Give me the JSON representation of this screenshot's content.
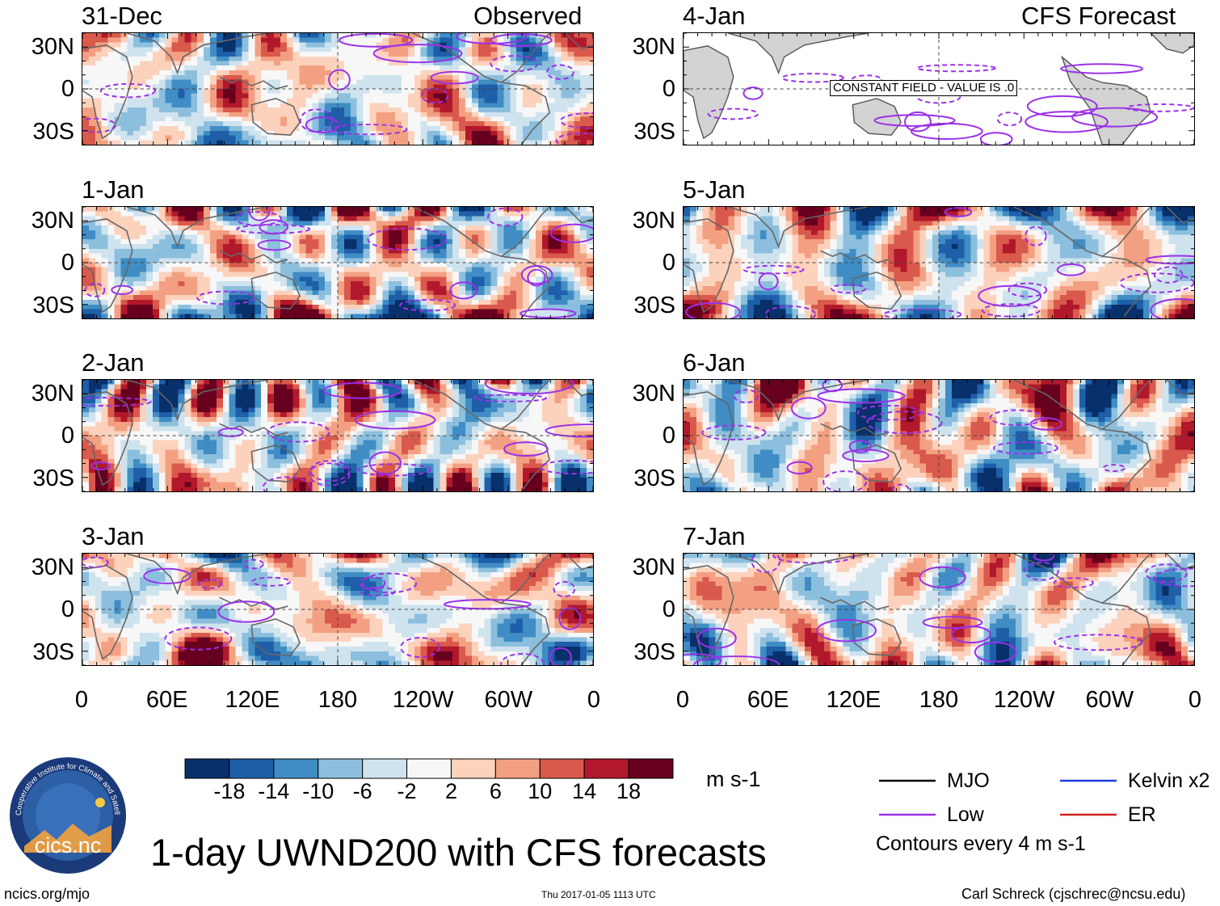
{
  "chart_data": {
    "type": "heatmap",
    "title": "1-day UWND200 with CFS forecasts",
    "units": "m s-1",
    "variable": "UWND200",
    "column_headers": {
      "left": "Observed",
      "right": "CFS Forecast"
    },
    "panels_left": [
      {
        "date": "31-Dec",
        "seed": 11
      },
      {
        "date": "1-Jan",
        "seed": 23
      },
      {
        "date": "2-Jan",
        "seed": 37
      },
      {
        "date": "3-Jan",
        "seed": 41
      }
    ],
    "panels_right": [
      {
        "date": "4-Jan",
        "seed": 0,
        "constant": true,
        "message": "CONSTANT FIELD - VALUE IS .0"
      },
      {
        "date": "5-Jan",
        "seed": 53
      },
      {
        "date": "6-Jan",
        "seed": 67
      },
      {
        "date": "7-Jan",
        "seed": 79
      }
    ],
    "y_axis": {
      "ticks": [
        "30N",
        "0",
        "30S"
      ],
      "lat_values": [
        30,
        0,
        -30
      ],
      "lat_range": [
        -40,
        40
      ]
    },
    "x_axis": {
      "ticks": [
        "0",
        "60E",
        "120E",
        "180",
        "120W",
        "60W",
        "0"
      ],
      "lon_values": [
        0,
        60,
        120,
        180,
        240,
        300,
        360
      ],
      "lon_range": [
        0,
        360
      ]
    },
    "colorbar": {
      "labels": [
        "-18",
        "-14",
        "-10",
        "-6",
        "-2",
        "2",
        "6",
        "10",
        "14",
        "18"
      ],
      "colors": [
        "#08306b",
        "#1f5ea8",
        "#3f8dc4",
        "#8cbfdd",
        "#cfe3ef",
        "#f7f7f7",
        "#fcd2bd",
        "#f3a082",
        "#d9594c",
        "#b2182b",
        "#67001f"
      ]
    },
    "legend": {
      "items": [
        {
          "label": "MJO",
          "color": "#000000"
        },
        {
          "label": "Kelvin x2",
          "color": "#1f3ddc"
        },
        {
          "label": "Low",
          "color": "#9b30e8"
        },
        {
          "label": "ER",
          "color": "#d62020"
        }
      ],
      "note": "Contours every 4 m s-1"
    }
  },
  "logo_text": "cics.nc",
  "logo_ring_text": "Cooperative Institute for Climate and Satellites",
  "footer": {
    "left": "ncics.org/mjo",
    "center": "Thu 2017-01-05 1113 UTC",
    "right": "Carl Schreck (cjschrec@ncsu.edu)"
  }
}
